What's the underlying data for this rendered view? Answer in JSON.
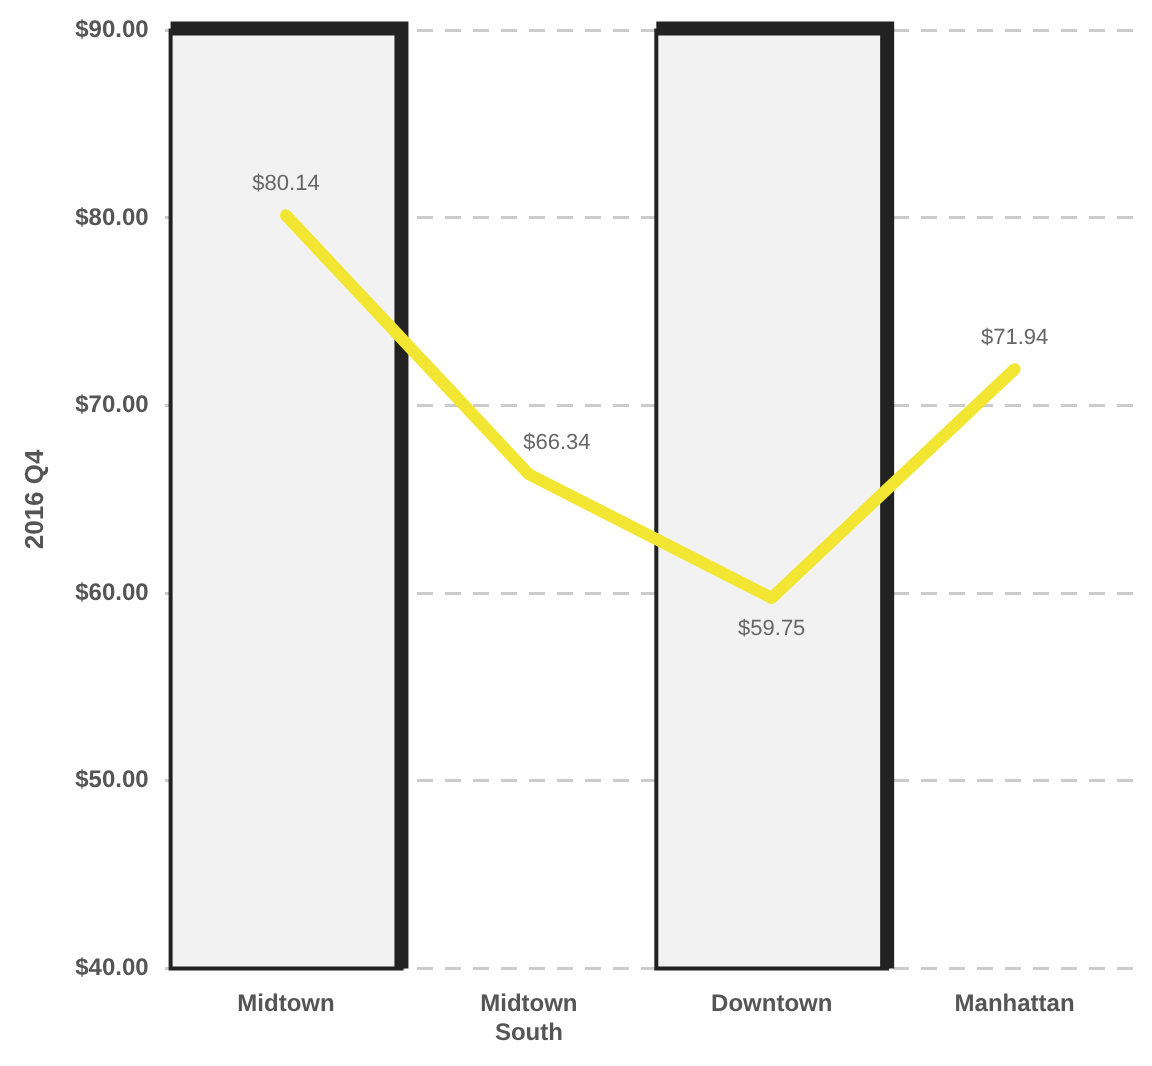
{
  "chart_data": {
    "type": "line",
    "ylabel": "2016 Q4",
    "categories": [
      "Midtown",
      "Midtown South",
      "Downtown",
      "Manhattan"
    ],
    "series": [
      {
        "color": "#f2e632",
        "values": [
          80.14,
          66.34,
          59.75,
          71.94
        ],
        "value_labels": [
          "$80.14",
          "$66.34",
          "$59.75",
          "$71.94"
        ]
      }
    ],
    "ylim": [
      40,
      90
    ],
    "yticks": [
      {
        "value": 40,
        "label": "$40.00"
      },
      {
        "value": 50,
        "label": "$50.00"
      },
      {
        "value": 60,
        "label": "$60.00"
      },
      {
        "value": 70,
        "label": "$70.00"
      },
      {
        "value": 80,
        "label": "$80.00"
      },
      {
        "value": 90,
        "label": "$90.00"
      }
    ],
    "grid": "y",
    "legend": false,
    "marker": "none",
    "line_style": "solid",
    "bands": [
      {
        "axis": "x",
        "from": "Midtown",
        "to": "Midtown",
        "color": "#f2f2f2"
      },
      {
        "axis": "x",
        "from": "Downtown",
        "to": "Downtown",
        "color": "#f2f2f2"
      }
    ]
  }
}
